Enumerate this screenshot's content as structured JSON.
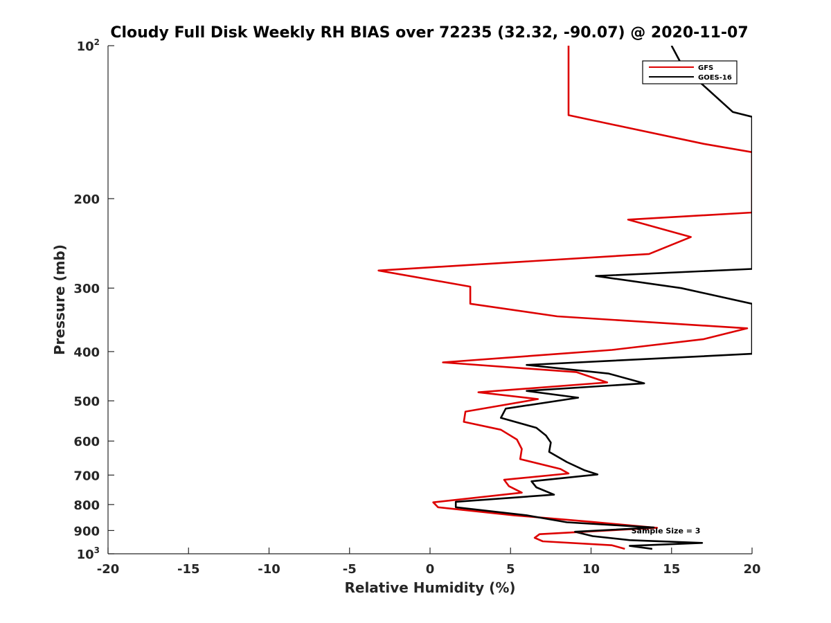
{
  "chart_data": {
    "type": "line",
    "title": "Cloudy Full Disk Weekly RH BIAS over 72235 (32.32, -90.07) @ 2020-11-07",
    "xlabel": "Relative Humidity (%)",
    "ylabel": "Pressure (mb)",
    "xlim": [
      -20,
      20
    ],
    "ylim": [
      100,
      1000
    ],
    "yscale": "log",
    "yreversed": true,
    "grid": false,
    "legend_position": "top-right",
    "x_ticks": [
      -20,
      -15,
      -10,
      -5,
      0,
      5,
      10,
      15,
      20
    ],
    "x_tick_labels": [
      "-20",
      "-15",
      "-10",
      "-5",
      "0",
      "5",
      "10",
      "15",
      "20"
    ],
    "y_ticks": [
      100,
      200,
      300,
      400,
      500,
      600,
      700,
      800,
      900,
      1000
    ],
    "y_tick_labels": [
      {
        "base": "10",
        "sup": "2"
      },
      {
        "base": "200"
      },
      {
        "base": "300"
      },
      {
        "base": "400"
      },
      {
        "base": "500"
      },
      {
        "base": "600"
      },
      {
        "base": "700"
      },
      {
        "base": "800"
      },
      {
        "base": "900"
      },
      {
        "base": "10",
        "sup": "3"
      }
    ],
    "series": [
      {
        "name": "GFS",
        "color": "#dd0000",
        "points": [
          [
            8.6,
            100
          ],
          [
            8.6,
            110
          ],
          [
            8.6,
            125
          ],
          [
            8.6,
            137
          ],
          [
            17.0,
            156
          ],
          [
            20.0,
            162
          ],
          [
            20.0,
            213
          ],
          [
            12.3,
            220
          ],
          [
            16.2,
            238
          ],
          [
            13.6,
            257
          ],
          [
            -3.2,
            277
          ],
          [
            2.5,
            298
          ],
          [
            2.5,
            322
          ],
          [
            7.9,
            341
          ],
          [
            19.7,
            360
          ],
          [
            17.0,
            378
          ],
          [
            11.3,
            397
          ],
          [
            0.8,
            420
          ],
          [
            9.1,
            439
          ],
          [
            11.0,
            460
          ],
          [
            3.0,
            481
          ],
          [
            6.7,
            496
          ],
          [
            2.2,
            525
          ],
          [
            2.1,
            550
          ],
          [
            4.4,
            570
          ],
          [
            5.4,
            596
          ],
          [
            5.7,
            622
          ],
          [
            5.6,
            651
          ],
          [
            8.1,
            681
          ],
          [
            8.6,
            695
          ],
          [
            4.6,
            715
          ],
          [
            4.9,
            736
          ],
          [
            5.7,
            758
          ],
          [
            0.2,
            792
          ],
          [
            0.5,
            810
          ],
          [
            5.2,
            840
          ],
          [
            10.0,
            865
          ],
          [
            14.1,
            889
          ],
          [
            6.8,
            915
          ],
          [
            6.5,
            930
          ],
          [
            7.0,
            945
          ],
          [
            11.3,
            962
          ],
          [
            12.1,
            978
          ]
        ]
      },
      {
        "name": "GOES-16",
        "color": "#000000",
        "points": [
          [
            15.0,
            100
          ],
          [
            15.7,
            110
          ],
          [
            18.8,
            135
          ],
          [
            20.0,
            138
          ],
          [
            20.0,
            275
          ],
          [
            10.3,
            284
          ],
          [
            15.6,
            300
          ],
          [
            20.0,
            322
          ],
          [
            20.0,
            404
          ],
          [
            6.0,
            425
          ],
          [
            11.1,
            442
          ],
          [
            13.3,
            462
          ],
          [
            6.0,
            478
          ],
          [
            9.2,
            493
          ],
          [
            4.7,
            518
          ],
          [
            4.4,
            540
          ],
          [
            6.6,
            565
          ],
          [
            7.2,
            585
          ],
          [
            7.5,
            604
          ],
          [
            7.4,
            630
          ],
          [
            8.5,
            660
          ],
          [
            9.6,
            685
          ],
          [
            10.4,
            698
          ],
          [
            6.3,
            720
          ],
          [
            6.6,
            740
          ],
          [
            7.7,
            765
          ],
          [
            1.6,
            790
          ],
          [
            1.6,
            810
          ],
          [
            6.0,
            840
          ],
          [
            8.5,
            867
          ],
          [
            13.9,
            888
          ],
          [
            9.0,
            905
          ],
          [
            10.1,
            923
          ],
          [
            12.4,
            940
          ],
          [
            16.9,
            952
          ],
          [
            12.4,
            965
          ],
          [
            13.8,
            978
          ]
        ]
      }
    ],
    "annotations": [
      {
        "text": "Sample Size = 3",
        "x": 12.5,
        "y": 900
      }
    ]
  }
}
